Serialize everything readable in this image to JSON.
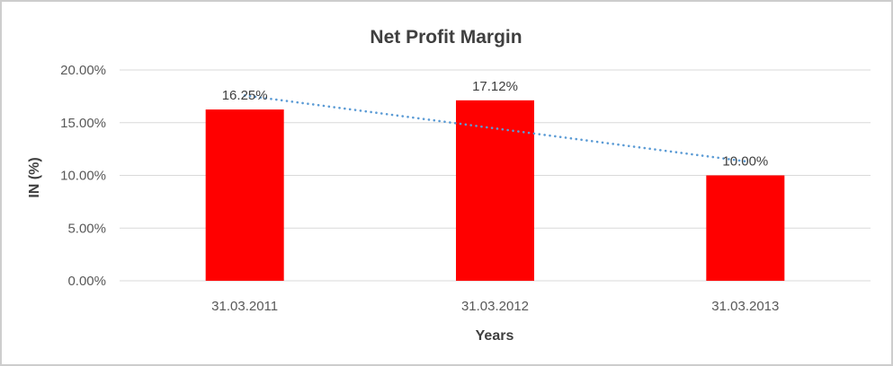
{
  "chart_data": {
    "type": "bar",
    "title": "Net Profit Margin",
    "xlabel": "Years",
    "ylabel": "IN (%)",
    "categories": [
      "31.03.2011",
      "31.03.2012",
      "31.03.2013"
    ],
    "values": [
      16.25,
      17.12,
      10.0
    ],
    "data_labels": [
      "16.25%",
      "17.12%",
      "10.00%"
    ],
    "ylim": [
      0,
      20
    ],
    "yticks": [
      0,
      5,
      10,
      15,
      20
    ],
    "ytick_labels": [
      "0.00%",
      "5.00%",
      "10.00%",
      "15.00%",
      "20.00%"
    ],
    "grid": true,
    "legend": "none",
    "bar_color": "#ff0000",
    "grid_color": "#d9d9d9",
    "axis_line_color": "#d9d9d9",
    "axis_text_color": "#595959",
    "title_color": "#3f3f3f",
    "trendline": {
      "type": "linear",
      "style": "dotted",
      "color": "#5b9bd5"
    }
  }
}
